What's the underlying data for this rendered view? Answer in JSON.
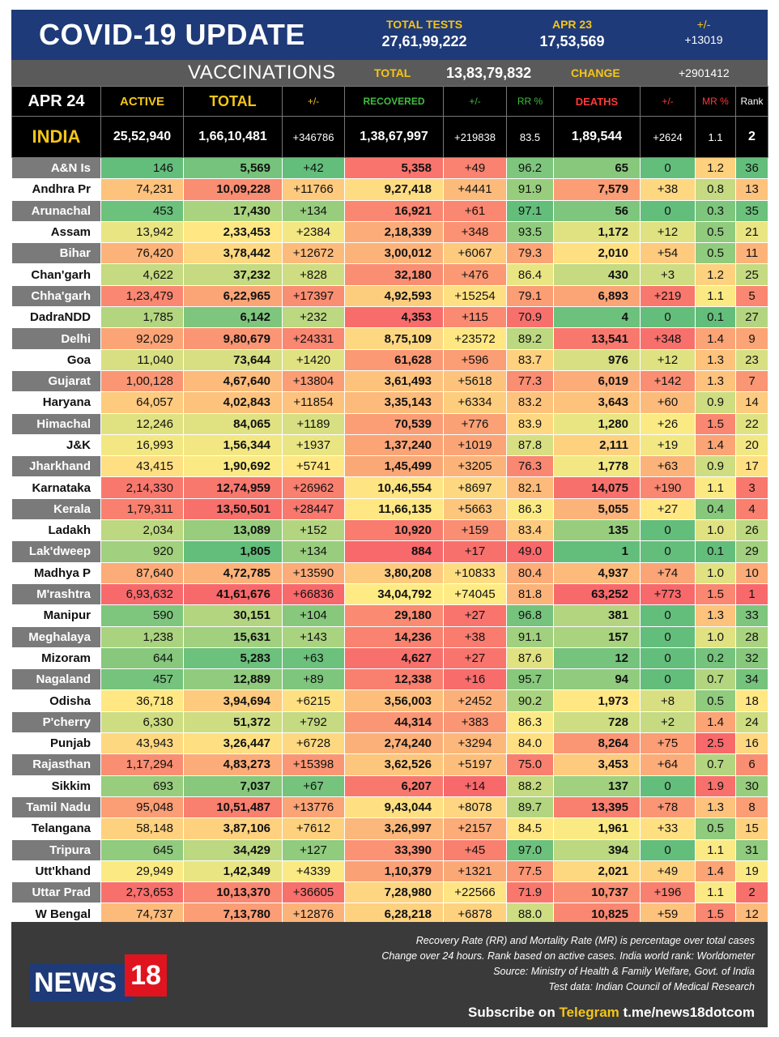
{
  "header": {
    "title": "COVID-19 UPDATE",
    "total_tests_label": "TOTAL TESTS",
    "total_tests_value": "27,61,99,222",
    "date_label": "APR 23",
    "date_value": "17,53,569",
    "change_label": "+/-",
    "change_value": "+13019"
  },
  "vaccinations": {
    "title": "VACCINATIONS",
    "total_label": "TOTAL",
    "total_value": "13,83,79,832",
    "change_label": "CHANGE",
    "change_value": "+2901412"
  },
  "columns": {
    "date": "APR 24",
    "active": "ACTIVE",
    "total": "TOTAL",
    "total_change": "+/-",
    "recovered": "RECOVERED",
    "recovered_change": "+/-",
    "rr": "RR %",
    "deaths": "DEATHS",
    "deaths_change": "+/-",
    "mr": "MR %",
    "rank": "Rank"
  },
  "india": {
    "name": "INDIA",
    "active": "25,52,940",
    "total": "1,66,10,481",
    "total_change": "+346786",
    "recovered": "1,38,67,997",
    "recovered_change": "+219838",
    "rr": "83.5",
    "deaths": "1,89,544",
    "deaths_change": "+2624",
    "mr": "1.1",
    "rank": "2"
  },
  "states": [
    {
      "name": "A&N Is",
      "active": "146",
      "total": "5,569",
      "tc": "+42",
      "rec": "5,358",
      "rc": "+49",
      "rr": "96.2",
      "deaths": "65",
      "dc": "0",
      "mr": "1.2",
      "rank": "36"
    },
    {
      "name": "Andhra Pr",
      "active": "74,231",
      "total": "10,09,228",
      "tc": "+11766",
      "rec": "9,27,418",
      "rc": "+4441",
      "rr": "91.9",
      "deaths": "7,579",
      "dc": "+38",
      "mr": "0.8",
      "rank": "13"
    },
    {
      "name": "Arunachal",
      "active": "453",
      "total": "17,430",
      "tc": "+134",
      "rec": "16,921",
      "rc": "+61",
      "rr": "97.1",
      "deaths": "56",
      "dc": "0",
      "mr": "0.3",
      "rank": "35"
    },
    {
      "name": "Assam",
      "active": "13,942",
      "total": "2,33,453",
      "tc": "+2384",
      "rec": "2,18,339",
      "rc": "+348",
      "rr": "93.5",
      "deaths": "1,172",
      "dc": "+12",
      "mr": "0.5",
      "rank": "21"
    },
    {
      "name": "Bihar",
      "active": "76,420",
      "total": "3,78,442",
      "tc": "+12672",
      "rec": "3,00,012",
      "rc": "+6067",
      "rr": "79.3",
      "deaths": "2,010",
      "dc": "+54",
      "mr": "0.5",
      "rank": "11"
    },
    {
      "name": "Chan'garh",
      "active": "4,622",
      "total": "37,232",
      "tc": "+828",
      "rec": "32,180",
      "rc": "+476",
      "rr": "86.4",
      "deaths": "430",
      "dc": "+3",
      "mr": "1.2",
      "rank": "25"
    },
    {
      "name": "Chha'garh",
      "active": "1,23,479",
      "total": "6,22,965",
      "tc": "+17397",
      "rec": "4,92,593",
      "rc": "+15254",
      "rr": "79.1",
      "deaths": "6,893",
      "dc": "+219",
      "mr": "1.1",
      "rank": "5"
    },
    {
      "name": "DadraNDD",
      "active": "1,785",
      "total": "6,142",
      "tc": "+232",
      "rec": "4,353",
      "rc": "+115",
      "rr": "70.9",
      "deaths": "4",
      "dc": "0",
      "mr": "0.1",
      "rank": "27"
    },
    {
      "name": "Delhi",
      "active": "92,029",
      "total": "9,80,679",
      "tc": "+24331",
      "rec": "8,75,109",
      "rc": "+23572",
      "rr": "89.2",
      "deaths": "13,541",
      "dc": "+348",
      "mr": "1.4",
      "rank": "9"
    },
    {
      "name": "Goa",
      "active": "11,040",
      "total": "73,644",
      "tc": "+1420",
      "rec": "61,628",
      "rc": "+596",
      "rr": "83.7",
      "deaths": "976",
      "dc": "+12",
      "mr": "1.3",
      "rank": "23"
    },
    {
      "name": "Gujarat",
      "active": "1,00,128",
      "total": "4,67,640",
      "tc": "+13804",
      "rec": "3,61,493",
      "rc": "+5618",
      "rr": "77.3",
      "deaths": "6,019",
      "dc": "+142",
      "mr": "1.3",
      "rank": "7"
    },
    {
      "name": "Haryana",
      "active": "64,057",
      "total": "4,02,843",
      "tc": "+11854",
      "rec": "3,35,143",
      "rc": "+6334",
      "rr": "83.2",
      "deaths": "3,643",
      "dc": "+60",
      "mr": "0.9",
      "rank": "14"
    },
    {
      "name": "Himachal",
      "active": "12,246",
      "total": "84,065",
      "tc": "+1189",
      "rec": "70,539",
      "rc": "+776",
      "rr": "83.9",
      "deaths": "1,280",
      "dc": "+26",
      "mr": "1.5",
      "rank": "22"
    },
    {
      "name": "J&K",
      "active": "16,993",
      "total": "1,56,344",
      "tc": "+1937",
      "rec": "1,37,240",
      "rc": "+1019",
      "rr": "87.8",
      "deaths": "2,111",
      "dc": "+19",
      "mr": "1.4",
      "rank": "20"
    },
    {
      "name": "Jharkhand",
      "active": "43,415",
      "total": "1,90,692",
      "tc": "+5741",
      "rec": "1,45,499",
      "rc": "+3205",
      "rr": "76.3",
      "deaths": "1,778",
      "dc": "+63",
      "mr": "0.9",
      "rank": "17"
    },
    {
      "name": "Karnataka",
      "active": "2,14,330",
      "total": "12,74,959",
      "tc": "+26962",
      "rec": "10,46,554",
      "rc": "+8697",
      "rr": "82.1",
      "deaths": "14,075",
      "dc": "+190",
      "mr": "1.1",
      "rank": "3"
    },
    {
      "name": "Kerala",
      "active": "1,79,311",
      "total": "13,50,501",
      "tc": "+28447",
      "rec": "11,66,135",
      "rc": "+5663",
      "rr": "86.3",
      "deaths": "5,055",
      "dc": "+27",
      "mr": "0.4",
      "rank": "4"
    },
    {
      "name": "Ladakh",
      "active": "2,034",
      "total": "13,089",
      "tc": "+152",
      "rec": "10,920",
      "rc": "+159",
      "rr": "83.4",
      "deaths": "135",
      "dc": "0",
      "mr": "1.0",
      "rank": "26"
    },
    {
      "name": "Lak'dweep",
      "active": "920",
      "total": "1,805",
      "tc": "+134",
      "rec": "884",
      "rc": "+17",
      "rr": "49.0",
      "deaths": "1",
      "dc": "0",
      "mr": "0.1",
      "rank": "29"
    },
    {
      "name": "Madhya P",
      "active": "87,640",
      "total": "4,72,785",
      "tc": "+13590",
      "rec": "3,80,208",
      "rc": "+10833",
      "rr": "80.4",
      "deaths": "4,937",
      "dc": "+74",
      "mr": "1.0",
      "rank": "10"
    },
    {
      "name": "M'rashtra",
      "active": "6,93,632",
      "total": "41,61,676",
      "tc": "+66836",
      "rec": "34,04,792",
      "rc": "+74045",
      "rr": "81.8",
      "deaths": "63,252",
      "dc": "+773",
      "mr": "1.5",
      "rank": "1"
    },
    {
      "name": "Manipur",
      "active": "590",
      "total": "30,151",
      "tc": "+104",
      "rec": "29,180",
      "rc": "+27",
      "rr": "96.8",
      "deaths": "381",
      "dc": "0",
      "mr": "1.3",
      "rank": "33"
    },
    {
      "name": "Meghalaya",
      "active": "1,238",
      "total": "15,631",
      "tc": "+143",
      "rec": "14,236",
      "rc": "+38",
      "rr": "91.1",
      "deaths": "157",
      "dc": "0",
      "mr": "1.0",
      "rank": "28"
    },
    {
      "name": "Mizoram",
      "active": "644",
      "total": "5,283",
      "tc": "+63",
      "rec": "4,627",
      "rc": "+27",
      "rr": "87.6",
      "deaths": "12",
      "dc": "0",
      "mr": "0.2",
      "rank": "32"
    },
    {
      "name": "Nagaland",
      "active": "457",
      "total": "12,889",
      "tc": "+89",
      "rec": "12,338",
      "rc": "+16",
      "rr": "95.7",
      "deaths": "94",
      "dc": "0",
      "mr": "0.7",
      "rank": "34"
    },
    {
      "name": "Odisha",
      "active": "36,718",
      "total": "3,94,694",
      "tc": "+6215",
      "rec": "3,56,003",
      "rc": "+2452",
      "rr": "90.2",
      "deaths": "1,973",
      "dc": "+8",
      "mr": "0.5",
      "rank": "18"
    },
    {
      "name": "P'cherry",
      "active": "6,330",
      "total": "51,372",
      "tc": "+792",
      "rec": "44,314",
      "rc": "+383",
      "rr": "86.3",
      "deaths": "728",
      "dc": "+2",
      "mr": "1.4",
      "rank": "24"
    },
    {
      "name": "Punjab",
      "active": "43,943",
      "total": "3,26,447",
      "tc": "+6728",
      "rec": "2,74,240",
      "rc": "+3294",
      "rr": "84.0",
      "deaths": "8,264",
      "dc": "+75",
      "mr": "2.5",
      "rank": "16"
    },
    {
      "name": "Rajasthan",
      "active": "1,17,294",
      "total": "4,83,273",
      "tc": "+15398",
      "rec": "3,62,526",
      "rc": "+5197",
      "rr": "75.0",
      "deaths": "3,453",
      "dc": "+64",
      "mr": "0.7",
      "rank": "6"
    },
    {
      "name": "Sikkim",
      "active": "693",
      "total": "7,037",
      "tc": "+67",
      "rec": "6,207",
      "rc": "+14",
      "rr": "88.2",
      "deaths": "137",
      "dc": "0",
      "mr": "1.9",
      "rank": "30"
    },
    {
      "name": "Tamil Nadu",
      "active": "95,048",
      "total": "10,51,487",
      "tc": "+13776",
      "rec": "9,43,044",
      "rc": "+8078",
      "rr": "89.7",
      "deaths": "13,395",
      "dc": "+78",
      "mr": "1.3",
      "rank": "8"
    },
    {
      "name": "Telangana",
      "active": "58,148",
      "total": "3,87,106",
      "tc": "+7612",
      "rec": "3,26,997",
      "rc": "+2157",
      "rr": "84.5",
      "deaths": "1,961",
      "dc": "+33",
      "mr": "0.5",
      "rank": "15"
    },
    {
      "name": "Tripura",
      "active": "645",
      "total": "34,429",
      "tc": "+127",
      "rec": "33,390",
      "rc": "+45",
      "rr": "97.0",
      "deaths": "394",
      "dc": "0",
      "mr": "1.1",
      "rank": "31"
    },
    {
      "name": "Utt'khand",
      "active": "29,949",
      "total": "1,42,349",
      "tc": "+4339",
      "rec": "1,10,379",
      "rc": "+1321",
      "rr": "77.5",
      "deaths": "2,021",
      "dc": "+49",
      "mr": "1.4",
      "rank": "19"
    },
    {
      "name": "Uttar Prad",
      "active": "2,73,653",
      "total": "10,13,370",
      "tc": "+36605",
      "rec": "7,28,980",
      "rc": "+22566",
      "rr": "71.9",
      "deaths": "10,737",
      "dc": "+196",
      "mr": "1.1",
      "rank": "2"
    },
    {
      "name": "W Bengal",
      "active": "74,737",
      "total": "7,13,780",
      "tc": "+12876",
      "rec": "6,28,218",
      "rc": "+6878",
      "rr": "88.0",
      "deaths": "10,825",
      "dc": "+59",
      "mr": "1.5",
      "rank": "12"
    }
  ],
  "footer": {
    "logo_text": "NEWS",
    "logo_number": "18",
    "notes": [
      "Recovery Rate (RR) and Mortality Rate (MR) is percentage over total cases",
      "Change over 24 hours. Rank based on active cases. India world rank: Worldometer",
      "Source: Ministry of Health & Family Welfare, Govt. of India",
      "Test data: Indian Council of Medical Research"
    ],
    "subscribe_prefix": "Subscribe on",
    "subscribe_platform": "Telegram",
    "subscribe_link": "t.me/news18dotcom"
  },
  "colors": {
    "header_bg": "#1e3a78",
    "accent_yellow": "#f5c518",
    "green": "#63be7b",
    "yellow": "#ffeb84",
    "red": "#f8696b"
  }
}
